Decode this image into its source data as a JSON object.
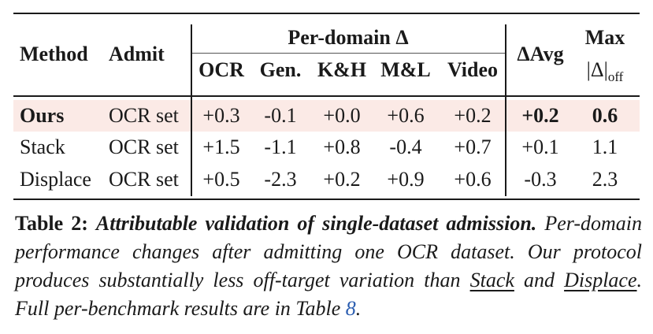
{
  "table": {
    "headers": {
      "method": "Method",
      "admit": "Admit",
      "per_domain": "Per-domain Δ",
      "domains": [
        "OCR",
        "Gen.",
        "K&H",
        "M&L",
        "Video"
      ],
      "delta_avg": "ΔAvg",
      "max_top": "Max",
      "max_bottom_main": "|Δ|",
      "max_bottom_sub": "off"
    },
    "rows": [
      {
        "method": "Ours",
        "admit": "OCR set",
        "values": [
          "+0.3",
          "-0.1",
          "+0.0",
          "+0.6",
          "+0.2"
        ],
        "delta_avg": "+0.2",
        "max": "0.6",
        "highlighted": true
      },
      {
        "method": "Stack",
        "admit": "OCR set",
        "values": [
          "+1.5",
          "-1.1",
          "+0.8",
          "-0.4",
          "+0.7"
        ],
        "delta_avg": "+0.1",
        "max": "1.1",
        "highlighted": false
      },
      {
        "method": "Displace",
        "admit": "OCR set",
        "values": [
          "+0.5",
          "-2.3",
          "+0.2",
          "+0.9",
          "+0.6"
        ],
        "delta_avg": "-0.3",
        "max": "2.3",
        "highlighted": false
      }
    ]
  },
  "caption": {
    "label": "Table 2:",
    "title": "Attributable validation of single-dataset admission.",
    "text_1": "Per-domain performance changes after admitting one OCR dataset. Our protocol produces substantially less off-target variation than",
    "link_stack": "Stack",
    "text_2": "and",
    "link_displace": "Displace",
    "text_3": ". Full per-benchmark results are in Table",
    "table_ref": "8",
    "text_4": "."
  }
}
